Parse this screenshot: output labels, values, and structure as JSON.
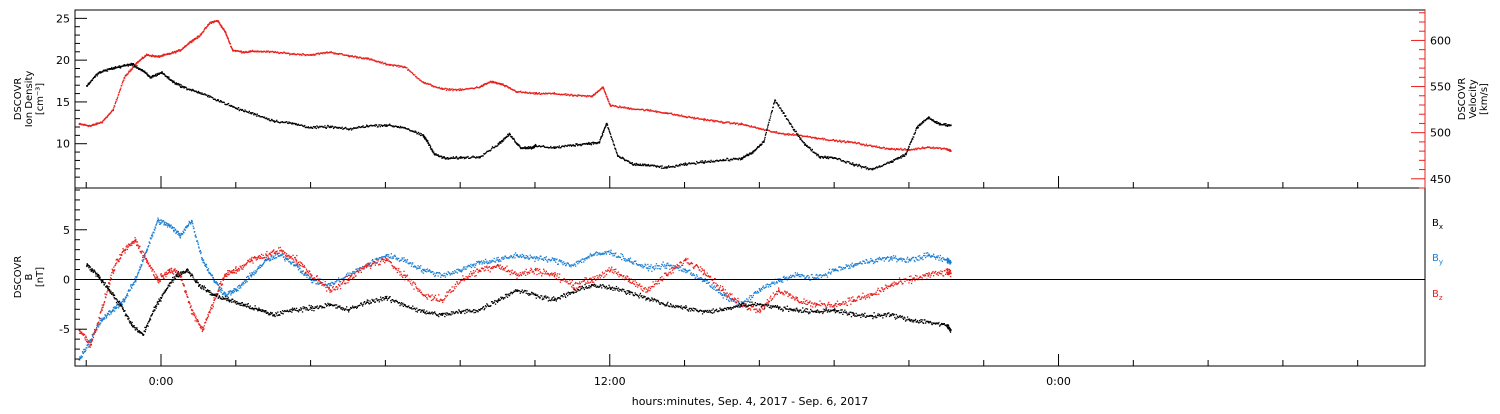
{
  "chart_data": [
    {
      "panel": "top",
      "type": "scatter",
      "x_tick_labels": [
        "0:00",
        "12:00",
        "0:00"
      ],
      "x_tick_hours": [
        0,
        12,
        24
      ],
      "x_range_hours": [
        -2.3,
        33.8
      ],
      "x_caption": "hours:minutes, Sep.  4, 2017 - Sep.  6, 2017",
      "left_axis": {
        "label": [
          "DSCOVR",
          "Ion Density",
          "[cm⁻³]"
        ],
        "ylim": [
          4.7,
          26
        ],
        "ticks": [
          10,
          15,
          20,
          25
        ],
        "color": "#000000"
      },
      "right_axis": {
        "label": [
          "DSCOVR",
          "Velocity",
          "[km/s]"
        ],
        "ylim": [
          440,
          633
        ],
        "ticks": [
          450,
          500,
          550,
          600
        ],
        "color": "#e8201c"
      },
      "series": [
        {
          "axis": "left",
          "color": "#000000",
          "x": [
            -2.0,
            -1.7,
            -1.4,
            -1.1,
            -0.8,
            -0.5,
            -0.3,
            0.0,
            0.3,
            0.6,
            1.0,
            1.5,
            2.0,
            2.5,
            3.0,
            3.5,
            4.0,
            4.5,
            5.0,
            5.5,
            6.0,
            6.5,
            7.0,
            7.1,
            7.3,
            7.6,
            8.0,
            8.5,
            9.0,
            9.3,
            9.6,
            9.9,
            10.0,
            10.5,
            11.0,
            11.4,
            11.7,
            11.9,
            12.2,
            12.6,
            13.0,
            13.5,
            14.0,
            14.5,
            15.0,
            15.5,
            15.8,
            16.1,
            16.4,
            16.8,
            17.2,
            17.6,
            18.0,
            18.5,
            19.0,
            19.5,
            19.9,
            20.2,
            20.5,
            20.8,
            21.1
          ],
          "y": [
            17.0,
            18.5,
            19.0,
            19.3,
            19.6,
            18.8,
            18.0,
            18.6,
            17.5,
            16.8,
            16.2,
            15.3,
            14.3,
            13.6,
            12.8,
            12.5,
            12.0,
            12.1,
            11.8,
            12.2,
            12.3,
            12.0,
            11.0,
            10.4,
            8.8,
            8.3,
            8.4,
            8.5,
            10.0,
            11.2,
            9.6,
            9.6,
            9.8,
            9.6,
            9.9,
            10.1,
            10.2,
            12.5,
            8.6,
            7.6,
            7.5,
            7.2,
            7.6,
            7.9,
            8.1,
            8.3,
            9.0,
            10.3,
            15.3,
            12.5,
            10.0,
            8.5,
            8.4,
            7.6,
            7.0,
            7.9,
            8.8,
            12.0,
            13.2,
            12.4,
            12.3
          ]
        },
        {
          "axis": "right",
          "color": "#e8201c",
          "x": [
            -2.2,
            -1.9,
            -1.6,
            -1.3,
            -1.0,
            -0.7,
            -0.4,
            -0.1,
            0.2,
            0.5,
            0.8,
            1.0,
            1.3,
            1.5,
            1.7,
            1.9,
            2.2,
            2.5,
            3.0,
            3.5,
            4.0,
            4.5,
            5.0,
            5.5,
            6.0,
            6.5,
            7.0,
            7.5,
            8.0,
            8.5,
            8.8,
            9.1,
            9.5,
            10.0,
            10.5,
            11.0,
            11.5,
            11.8,
            12.0,
            12.5,
            13.0,
            13.5,
            14.0,
            14.5,
            15.0,
            15.5,
            16.0,
            16.5,
            17.0,
            17.5,
            18.0,
            18.5,
            19.0,
            19.5,
            20.0,
            20.5,
            21.0,
            21.1
          ],
          "y": [
            510,
            508,
            512,
            525,
            560,
            575,
            585,
            583,
            586,
            590,
            600,
            605,
            620,
            622,
            610,
            590,
            588,
            589,
            588,
            586,
            585,
            588,
            584,
            581,
            575,
            572,
            555,
            548,
            547,
            550,
            556,
            553,
            545,
            543,
            543,
            541,
            540,
            550,
            530,
            527,
            525,
            522,
            518,
            515,
            512,
            510,
            505,
            500,
            498,
            495,
            492,
            490,
            486,
            483,
            482,
            485,
            483,
            481
          ]
        }
      ]
    },
    {
      "panel": "bottom",
      "type": "scatter",
      "x_tick_labels": [
        "0:00",
        "12:00",
        "0:00"
      ],
      "x_tick_hours": [
        0,
        12,
        24
      ],
      "x_range_hours": [
        -2.3,
        33.8
      ],
      "left_axis": {
        "label": [
          "DSCOVR",
          "B",
          "[nT]"
        ],
        "ylim": [
          -8.7,
          9.2
        ],
        "ticks": [
          -5,
          0,
          5
        ]
      },
      "zero_line": true,
      "series": [
        {
          "name": "Bx",
          "color": "#000000",
          "x": [
            -2.0,
            -1.7,
            -1.4,
            -1.1,
            -0.8,
            -0.5,
            -0.2,
            0.1,
            0.4,
            0.7,
            1.0,
            1.4,
            1.8,
            2.2,
            2.6,
            3.0,
            3.5,
            4.0,
            4.5,
            5.0,
            5.5,
            6.0,
            6.5,
            7.0,
            7.5,
            8.0,
            8.5,
            9.0,
            9.5,
            10.0,
            10.5,
            11.0,
            11.5,
            12.0,
            12.5,
            13.0,
            13.5,
            14.0,
            14.5,
            15.0,
            15.5,
            16.0,
            16.5,
            17.0,
            17.5,
            18.0,
            18.5,
            19.0,
            19.5,
            20.0,
            20.5,
            21.0,
            21.1
          ],
          "y": [
            1.5,
            0.5,
            -1.0,
            -2.5,
            -4.5,
            -5.5,
            -3.0,
            -1.0,
            0.5,
            1.0,
            -0.5,
            -1.5,
            -2.0,
            -2.5,
            -3.0,
            -3.5,
            -3.0,
            -2.8,
            -2.5,
            -3.0,
            -2.2,
            -1.8,
            -2.5,
            -3.2,
            -3.5,
            -3.2,
            -3.0,
            -2.0,
            -1.0,
            -1.5,
            -2.0,
            -1.2,
            -0.5,
            -0.8,
            -1.2,
            -1.8,
            -2.5,
            -2.8,
            -3.2,
            -3.0,
            -2.5,
            -2.4,
            -2.8,
            -3.0,
            -3.2,
            -3.0,
            -3.5,
            -3.6,
            -3.5,
            -4.0,
            -4.2,
            -4.6,
            -5.0
          ]
        },
        {
          "name": "By",
          "color": "#1a7fd4",
          "x": [
            -2.2,
            -1.9,
            -1.6,
            -1.3,
            -1.0,
            -0.7,
            -0.4,
            -0.1,
            0.2,
            0.5,
            0.8,
            1.1,
            1.4,
            1.7,
            2.0,
            2.4,
            2.8,
            3.2,
            3.6,
            4.0,
            4.5,
            5.0,
            5.5,
            6.0,
            6.5,
            7.0,
            7.5,
            8.0,
            8.5,
            9.0,
            9.5,
            10.0,
            10.5,
            11.0,
            11.5,
            12.0,
            12.5,
            13.0,
            13.5,
            14.0,
            14.5,
            15.0,
            15.5,
            16.0,
            16.5,
            17.0,
            17.5,
            18.0,
            18.5,
            19.0,
            19.5,
            20.0,
            20.5,
            21.0,
            21.1
          ],
          "y": [
            -8.0,
            -6.0,
            -4.0,
            -3.0,
            -2.0,
            0.0,
            3.0,
            6.0,
            5.5,
            4.5,
            6.0,
            2.0,
            0.0,
            -1.5,
            -1.0,
            0.5,
            2.0,
            2.5,
            1.5,
            0.0,
            -0.5,
            0.5,
            1.5,
            2.5,
            2.0,
            1.0,
            0.5,
            1.0,
            1.8,
            2.0,
            2.5,
            2.2,
            2.0,
            1.5,
            2.5,
            2.8,
            2.0,
            1.2,
            1.5,
            1.0,
            0.0,
            -1.5,
            -2.5,
            -1.0,
            0.0,
            0.5,
            0.2,
            1.0,
            1.5,
            2.0,
            2.2,
            2.0,
            2.5,
            2.0,
            1.8
          ]
        },
        {
          "name": "Bz",
          "color": "#e8201c",
          "x": [
            -2.2,
            -1.9,
            -1.6,
            -1.3,
            -1.0,
            -0.7,
            -0.4,
            -0.1,
            0.2,
            0.5,
            0.8,
            1.1,
            1.4,
            1.7,
            2.0,
            2.4,
            2.8,
            3.2,
            3.6,
            4.0,
            4.5,
            5.0,
            5.5,
            6.0,
            6.5,
            7.0,
            7.5,
            8.0,
            8.5,
            9.0,
            9.5,
            10.0,
            10.5,
            11.0,
            11.5,
            12.0,
            12.5,
            13.0,
            13.5,
            14.0,
            14.5,
            15.0,
            15.5,
            16.0,
            16.5,
            17.0,
            17.5,
            18.0,
            18.5,
            19.0,
            19.5,
            20.0,
            20.5,
            21.0,
            21.1
          ],
          "y": [
            -5.0,
            -6.5,
            -3.0,
            1.0,
            3.0,
            4.0,
            2.0,
            0.0,
            1.0,
            0.5,
            -3.0,
            -5.0,
            -2.0,
            0.5,
            1.0,
            2.0,
            2.5,
            3.0,
            2.0,
            0.5,
            -1.0,
            0.0,
            1.5,
            2.0,
            0.5,
            -1.5,
            -2.0,
            0.0,
            1.0,
            1.5,
            0.5,
            1.0,
            0.5,
            -0.5,
            0.0,
            1.0,
            0.0,
            -1.0,
            0.5,
            2.0,
            1.0,
            -1.0,
            -2.5,
            -3.0,
            -1.0,
            -2.0,
            -2.5,
            -2.5,
            -2.0,
            -1.5,
            -0.5,
            0.0,
            0.5,
            0.8,
            0.7
          ]
        }
      ],
      "legend": [
        {
          "letter": "B",
          "sub": "x",
          "color": "#000000"
        },
        {
          "letter": "B",
          "sub": "y",
          "color": "#1a7fd4"
        },
        {
          "letter": "B",
          "sub": "z",
          "color": "#e8201c"
        }
      ]
    }
  ]
}
